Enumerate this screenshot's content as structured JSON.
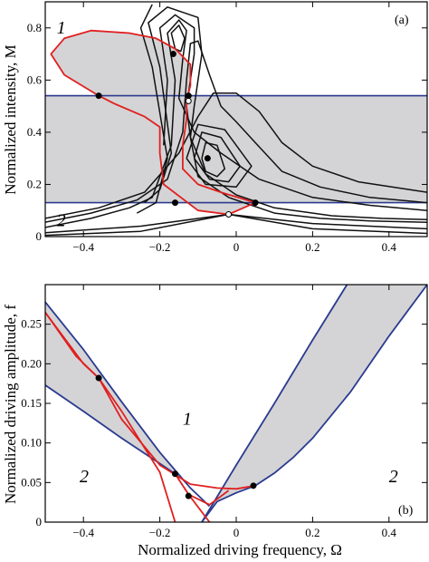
{
  "colors": {
    "shade": "#d4d4d6",
    "red": "#e02020",
    "blue": "#2a3a8f",
    "black": "#111111"
  },
  "chart_data": [
    {
      "type": "line",
      "panel_label": "(a)",
      "xlabel": "",
      "ylabel": "Normalized intensity, M",
      "xlim": [
        -0.5,
        0.5
      ],
      "ylim": [
        0,
        0.9
      ],
      "xticks": [
        -0.4,
        -0.2,
        0,
        0.2,
        0.4
      ],
      "xtick_labels": [
        "−0.4",
        "−0.2",
        "0",
        "0.2",
        "0.4"
      ],
      "yticks": [
        0,
        0.2,
        0.4,
        0.6,
        0.8
      ],
      "ytick_labels": [
        "0",
        "0.2",
        "0.4",
        "0.6",
        "0.8"
      ],
      "region_labels": [
        {
          "text": "1",
          "x": -0.47,
          "y": 0.8
        },
        {
          "text": "2",
          "x": -0.47,
          "y": 0.06
        }
      ],
      "horizontal_lines": [
        0.13,
        0.54
      ],
      "shaded_band": [
        0.13,
        0.54
      ],
      "series": [
        {
          "color": "red",
          "values": [
            [
              0.05,
              0.13
            ],
            [
              -0.02,
              0.085
            ],
            [
              -0.1,
              0.1
            ],
            [
              -0.19,
              0.2
            ],
            [
              -0.2,
              0.32
            ],
            [
              -0.2,
              0.42
            ],
            [
              -0.24,
              0.46
            ],
            [
              -0.32,
              0.51
            ],
            [
              -0.36,
              0.54
            ],
            [
              -0.45,
              0.62
            ],
            [
              -0.485,
              0.7
            ],
            [
              -0.45,
              0.76
            ],
            [
              -0.38,
              0.79
            ],
            [
              -0.28,
              0.78
            ],
            [
              -0.21,
              0.76
            ],
            [
              -0.16,
              0.72
            ],
            [
              -0.12,
              0.66
            ],
            [
              -0.12,
              0.58
            ],
            [
              -0.13,
              0.52
            ],
            [
              -0.13,
              0.45
            ],
            [
              -0.14,
              0.35
            ],
            [
              -0.14,
              0.26
            ],
            [
              -0.1,
              0.2
            ],
            [
              -0.04,
              0.17
            ],
            [
              0.05,
              0.13
            ]
          ]
        },
        {
          "color": "black",
          "values": [
            [
              -0.26,
              0.09
            ],
            [
              -0.21,
              0.13
            ],
            [
              -0.18,
              0.3
            ],
            [
              -0.22,
              0.65
            ],
            [
              -0.25,
              0.8
            ],
            [
              -0.22,
              0.89
            ]
          ]
        },
        {
          "color": "black",
          "values": [
            [
              -0.24,
              0.13
            ],
            [
              -0.2,
              0.18
            ],
            [
              -0.17,
              0.32
            ],
            [
              -0.2,
              0.65
            ],
            [
              -0.23,
              0.82
            ],
            [
              -0.18,
              0.88
            ],
            [
              -0.1,
              0.84
            ],
            [
              -0.09,
              0.7
            ],
            [
              -0.11,
              0.5
            ],
            [
              -0.12,
              0.38
            ],
            [
              -0.1,
              0.23
            ],
            [
              -0.02,
              0.15
            ],
            [
              0.1,
              0.09
            ],
            [
              0.22,
              0.07
            ],
            [
              0.35,
              0.06
            ],
            [
              0.5,
              0.055
            ]
          ]
        },
        {
          "color": "black",
          "values": [
            [
              -0.19,
              0.35
            ],
            [
              -0.18,
              0.6
            ],
            [
              -0.2,
              0.8
            ],
            [
              -0.16,
              0.85
            ],
            [
              -0.11,
              0.8
            ],
            [
              -0.11,
              0.7
            ],
            [
              -0.13,
              0.5
            ],
            [
              -0.12,
              0.38
            ],
            [
              -0.08,
              0.24
            ],
            [
              0.0,
              0.16
            ],
            [
              0.1,
              0.11
            ],
            [
              0.25,
              0.08
            ],
            [
              0.38,
              0.07
            ],
            [
              0.5,
              0.065
            ]
          ]
        },
        {
          "color": "black",
          "values": [
            [
              -0.5,
              0.035
            ],
            [
              -0.38,
              0.07
            ],
            [
              -0.28,
              0.11
            ],
            [
              -0.22,
              0.15
            ],
            [
              -0.17,
              0.35
            ],
            [
              -0.16,
              0.6
            ],
            [
              -0.18,
              0.78
            ],
            [
              -0.15,
              0.83
            ],
            [
              -0.13,
              0.79
            ],
            [
              -0.14,
              0.68
            ],
            [
              -0.15,
              0.53
            ],
            [
              -0.11,
              0.4
            ],
            [
              -0.04,
              0.32
            ],
            [
              0.06,
              0.22
            ],
            [
              0.2,
              0.15
            ],
            [
              0.35,
              0.12
            ],
            [
              0.5,
              0.1
            ]
          ]
        },
        {
          "color": "black",
          "values": [
            [
              -0.5,
              0.055
            ],
            [
              -0.38,
              0.09
            ],
            [
              -0.26,
              0.14
            ],
            [
              -0.18,
              0.22
            ],
            [
              -0.14,
              0.4
            ],
            [
              -0.13,
              0.6
            ],
            [
              -0.12,
              0.74
            ],
            [
              -0.1,
              0.75
            ],
            [
              -0.07,
              0.62
            ],
            [
              -0.04,
              0.5
            ],
            [
              0.0,
              0.44
            ],
            [
              0.05,
              0.36
            ],
            [
              0.12,
              0.25
            ],
            [
              0.22,
              0.19
            ],
            [
              0.35,
              0.15
            ],
            [
              0.5,
              0.13
            ]
          ]
        },
        {
          "color": "black",
          "values": [
            [
              -0.5,
              0.07
            ],
            [
              -0.36,
              0.11
            ],
            [
              -0.24,
              0.17
            ],
            [
              -0.15,
              0.32
            ],
            [
              -0.1,
              0.46
            ],
            [
              -0.06,
              0.55
            ],
            [
              0.0,
              0.55
            ],
            [
              0.06,
              0.48
            ],
            [
              0.12,
              0.36
            ],
            [
              0.2,
              0.27
            ],
            [
              0.32,
              0.21
            ],
            [
              0.5,
              0.17
            ]
          ]
        },
        {
          "color": "black",
          "values": [
            [
              -0.16,
              0.72
            ],
            [
              -0.17,
              0.78
            ],
            [
              -0.15,
              0.81
            ],
            [
              -0.135,
              0.76
            ],
            [
              -0.145,
              0.71
            ],
            [
              -0.16,
              0.72
            ]
          ]
        },
        {
          "color": "black",
          "values": [
            [
              -0.09,
              0.3
            ],
            [
              -0.08,
              0.36
            ],
            [
              -0.05,
              0.35
            ],
            [
              -0.03,
              0.26
            ],
            [
              -0.05,
              0.23
            ],
            [
              -0.08,
              0.25
            ],
            [
              -0.09,
              0.3
            ]
          ]
        },
        {
          "color": "black",
          "values": [
            [
              -0.11,
              0.3
            ],
            [
              -0.09,
              0.4
            ],
            [
              -0.04,
              0.38
            ],
            [
              0.01,
              0.27
            ],
            [
              -0.02,
              0.21
            ],
            [
              -0.07,
              0.22
            ],
            [
              -0.11,
              0.3
            ]
          ]
        },
        {
          "color": "black",
          "values": [
            [
              -0.13,
              0.3
            ],
            [
              -0.1,
              0.43
            ],
            [
              -0.03,
              0.41
            ],
            [
              0.04,
              0.27
            ],
            [
              0.0,
              0.19
            ],
            [
              -0.08,
              0.2
            ],
            [
              -0.13,
              0.3
            ]
          ]
        },
        {
          "color": "black",
          "values": [
            [
              -0.5,
              0.005
            ],
            [
              -0.25,
              0.02
            ],
            [
              -0.02,
              0.085
            ],
            [
              0.2,
              0.03
            ],
            [
              0.5,
              0.012
            ]
          ]
        },
        {
          "color": "black",
          "values": [
            [
              -0.5,
              0.015
            ],
            [
              -0.25,
              0.04
            ],
            [
              -0.02,
              0.085
            ],
            [
              0.2,
              0.05
            ],
            [
              0.5,
              0.03
            ]
          ]
        }
      ],
      "points": [
        {
          "x": -0.36,
          "y": 0.54,
          "fill": "black"
        },
        {
          "x": -0.165,
          "y": 0.7,
          "fill": "black"
        },
        {
          "x": -0.125,
          "y": 0.54,
          "fill": "black"
        },
        {
          "x": -0.16,
          "y": 0.13,
          "fill": "black"
        },
        {
          "x": -0.075,
          "y": 0.3,
          "fill": "black"
        },
        {
          "x": 0.05,
          "y": 0.13,
          "fill": "black"
        },
        {
          "x": -0.125,
          "y": 0.52,
          "fill": "white"
        },
        {
          "x": -0.02,
          "y": 0.085,
          "fill": "white"
        }
      ]
    },
    {
      "type": "line",
      "panel_label": "(b)",
      "xlabel": "Normalized driving frequency, Ω",
      "ylabel": "Normalized driving amplitude, f",
      "xlim": [
        -0.5,
        0.5
      ],
      "ylim": [
        0,
        0.3
      ],
      "xticks": [
        -0.4,
        -0.2,
        0,
        0.2,
        0.4
      ],
      "xtick_labels": [
        "−0.4",
        "−0.2",
        "0",
        "0.2",
        "0.4"
      ],
      "yticks": [
        0,
        0.05,
        0.1,
        0.15,
        0.2,
        0.25
      ],
      "ytick_labels": [
        "0",
        "0.05",
        "0.10",
        "0.15",
        "0.20",
        "0.25"
      ],
      "region_labels": [
        {
          "text": "1",
          "x": -0.14,
          "y": 0.13
        },
        {
          "text": "2",
          "x": -0.41,
          "y": 0.057
        },
        {
          "text": "2",
          "x": 0.4,
          "y": 0.057
        }
      ],
      "series": [
        {
          "color": "blue",
          "values": [
            [
              -0.5,
              0.173
            ],
            [
              -0.4,
              0.14
            ],
            [
              -0.3,
              0.106
            ],
            [
              -0.2,
              0.074
            ],
            [
              -0.16,
              0.061
            ]
          ]
        },
        {
          "color": "blue",
          "values": [
            [
              -0.5,
              0.278
            ],
            [
              -0.4,
              0.218
            ],
            [
              -0.3,
              0.152
            ],
            [
              -0.2,
              0.088
            ],
            [
              -0.12,
              0.043
            ],
            [
              -0.07,
              0.02
            ]
          ]
        },
        {
          "color": "blue",
          "values": [
            [
              -0.09,
              0.0
            ],
            [
              -0.05,
              0.026
            ],
            [
              0.0,
              0.037
            ],
            [
              0.05,
              0.046
            ],
            [
              0.1,
              0.062
            ],
            [
              0.15,
              0.082
            ],
            [
              0.2,
              0.106
            ],
            [
              0.3,
              0.165
            ],
            [
              0.4,
              0.235
            ],
            [
              0.5,
              0.3
            ]
          ]
        },
        {
          "color": "blue",
          "values": [
            [
              -0.09,
              0.0
            ],
            [
              0.0,
              0.072
            ],
            [
              0.1,
              0.15
            ],
            [
              0.2,
              0.23
            ],
            [
              0.29,
              0.3
            ]
          ]
        },
        {
          "color": "red",
          "values": [
            [
              -0.5,
              0.265
            ],
            [
              -0.4,
              0.2
            ],
            [
              -0.36,
              0.182
            ],
            [
              -0.3,
              0.14
            ],
            [
              -0.2,
              0.063
            ],
            [
              -0.16,
              0.0
            ]
          ]
        },
        {
          "color": "red",
          "values": [
            [
              -0.5,
              0.265
            ],
            [
              -0.42,
              0.21
            ],
            [
              -0.36,
              0.182
            ],
            [
              -0.3,
              0.13
            ],
            [
              -0.2,
              0.072
            ],
            [
              -0.12,
              0.048
            ],
            [
              -0.05,
              0.043
            ],
            [
              0.0,
              0.042
            ],
            [
              0.05,
              0.046
            ]
          ]
        },
        {
          "color": "red",
          "values": [
            [
              -0.07,
              0.0
            ],
            [
              -0.125,
              0.035
            ],
            [
              -0.16,
              0.061
            ]
          ]
        },
        {
          "color": "red",
          "values": [
            [
              -0.125,
              0.035
            ],
            [
              -0.07,
              0.022
            ],
            [
              -0.02,
              0.04
            ]
          ]
        },
        {
          "color": "red",
          "dashed": true,
          "values": [
            [
              -0.16,
              0.061
            ],
            [
              -0.125,
              0.035
            ]
          ]
        }
      ],
      "points": [
        {
          "x": -0.36,
          "y": 0.182,
          "fill": "black"
        },
        {
          "x": -0.16,
          "y": 0.061,
          "fill": "black"
        },
        {
          "x": -0.125,
          "y": 0.033,
          "fill": "black"
        },
        {
          "x": 0.045,
          "y": 0.046,
          "fill": "black"
        }
      ]
    }
  ]
}
